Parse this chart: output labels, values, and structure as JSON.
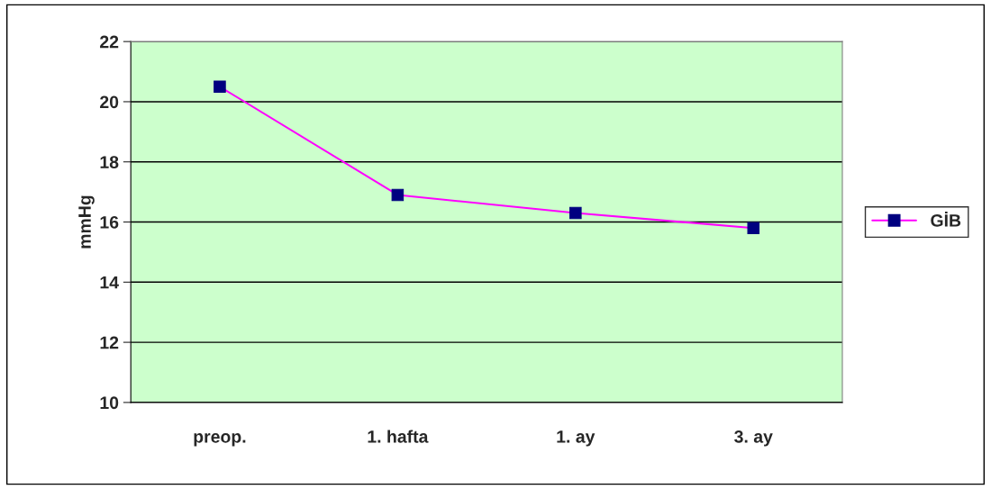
{
  "chart_data": {
    "type": "line",
    "ylabel": "mmHg",
    "categories": [
      "preop.",
      "1. hafta",
      "1. ay",
      "3. ay"
    ],
    "series": [
      {
        "name": "GİB",
        "color": "#ff00ff",
        "values": [
          20.5,
          16.9,
          16.3,
          15.8
        ]
      }
    ],
    "ylim": [
      10,
      22
    ],
    "yticks": [
      10,
      12,
      14,
      16,
      18,
      20,
      22
    ],
    "grid": "y",
    "legend": "right",
    "marker": "square",
    "line_style": "solid"
  }
}
